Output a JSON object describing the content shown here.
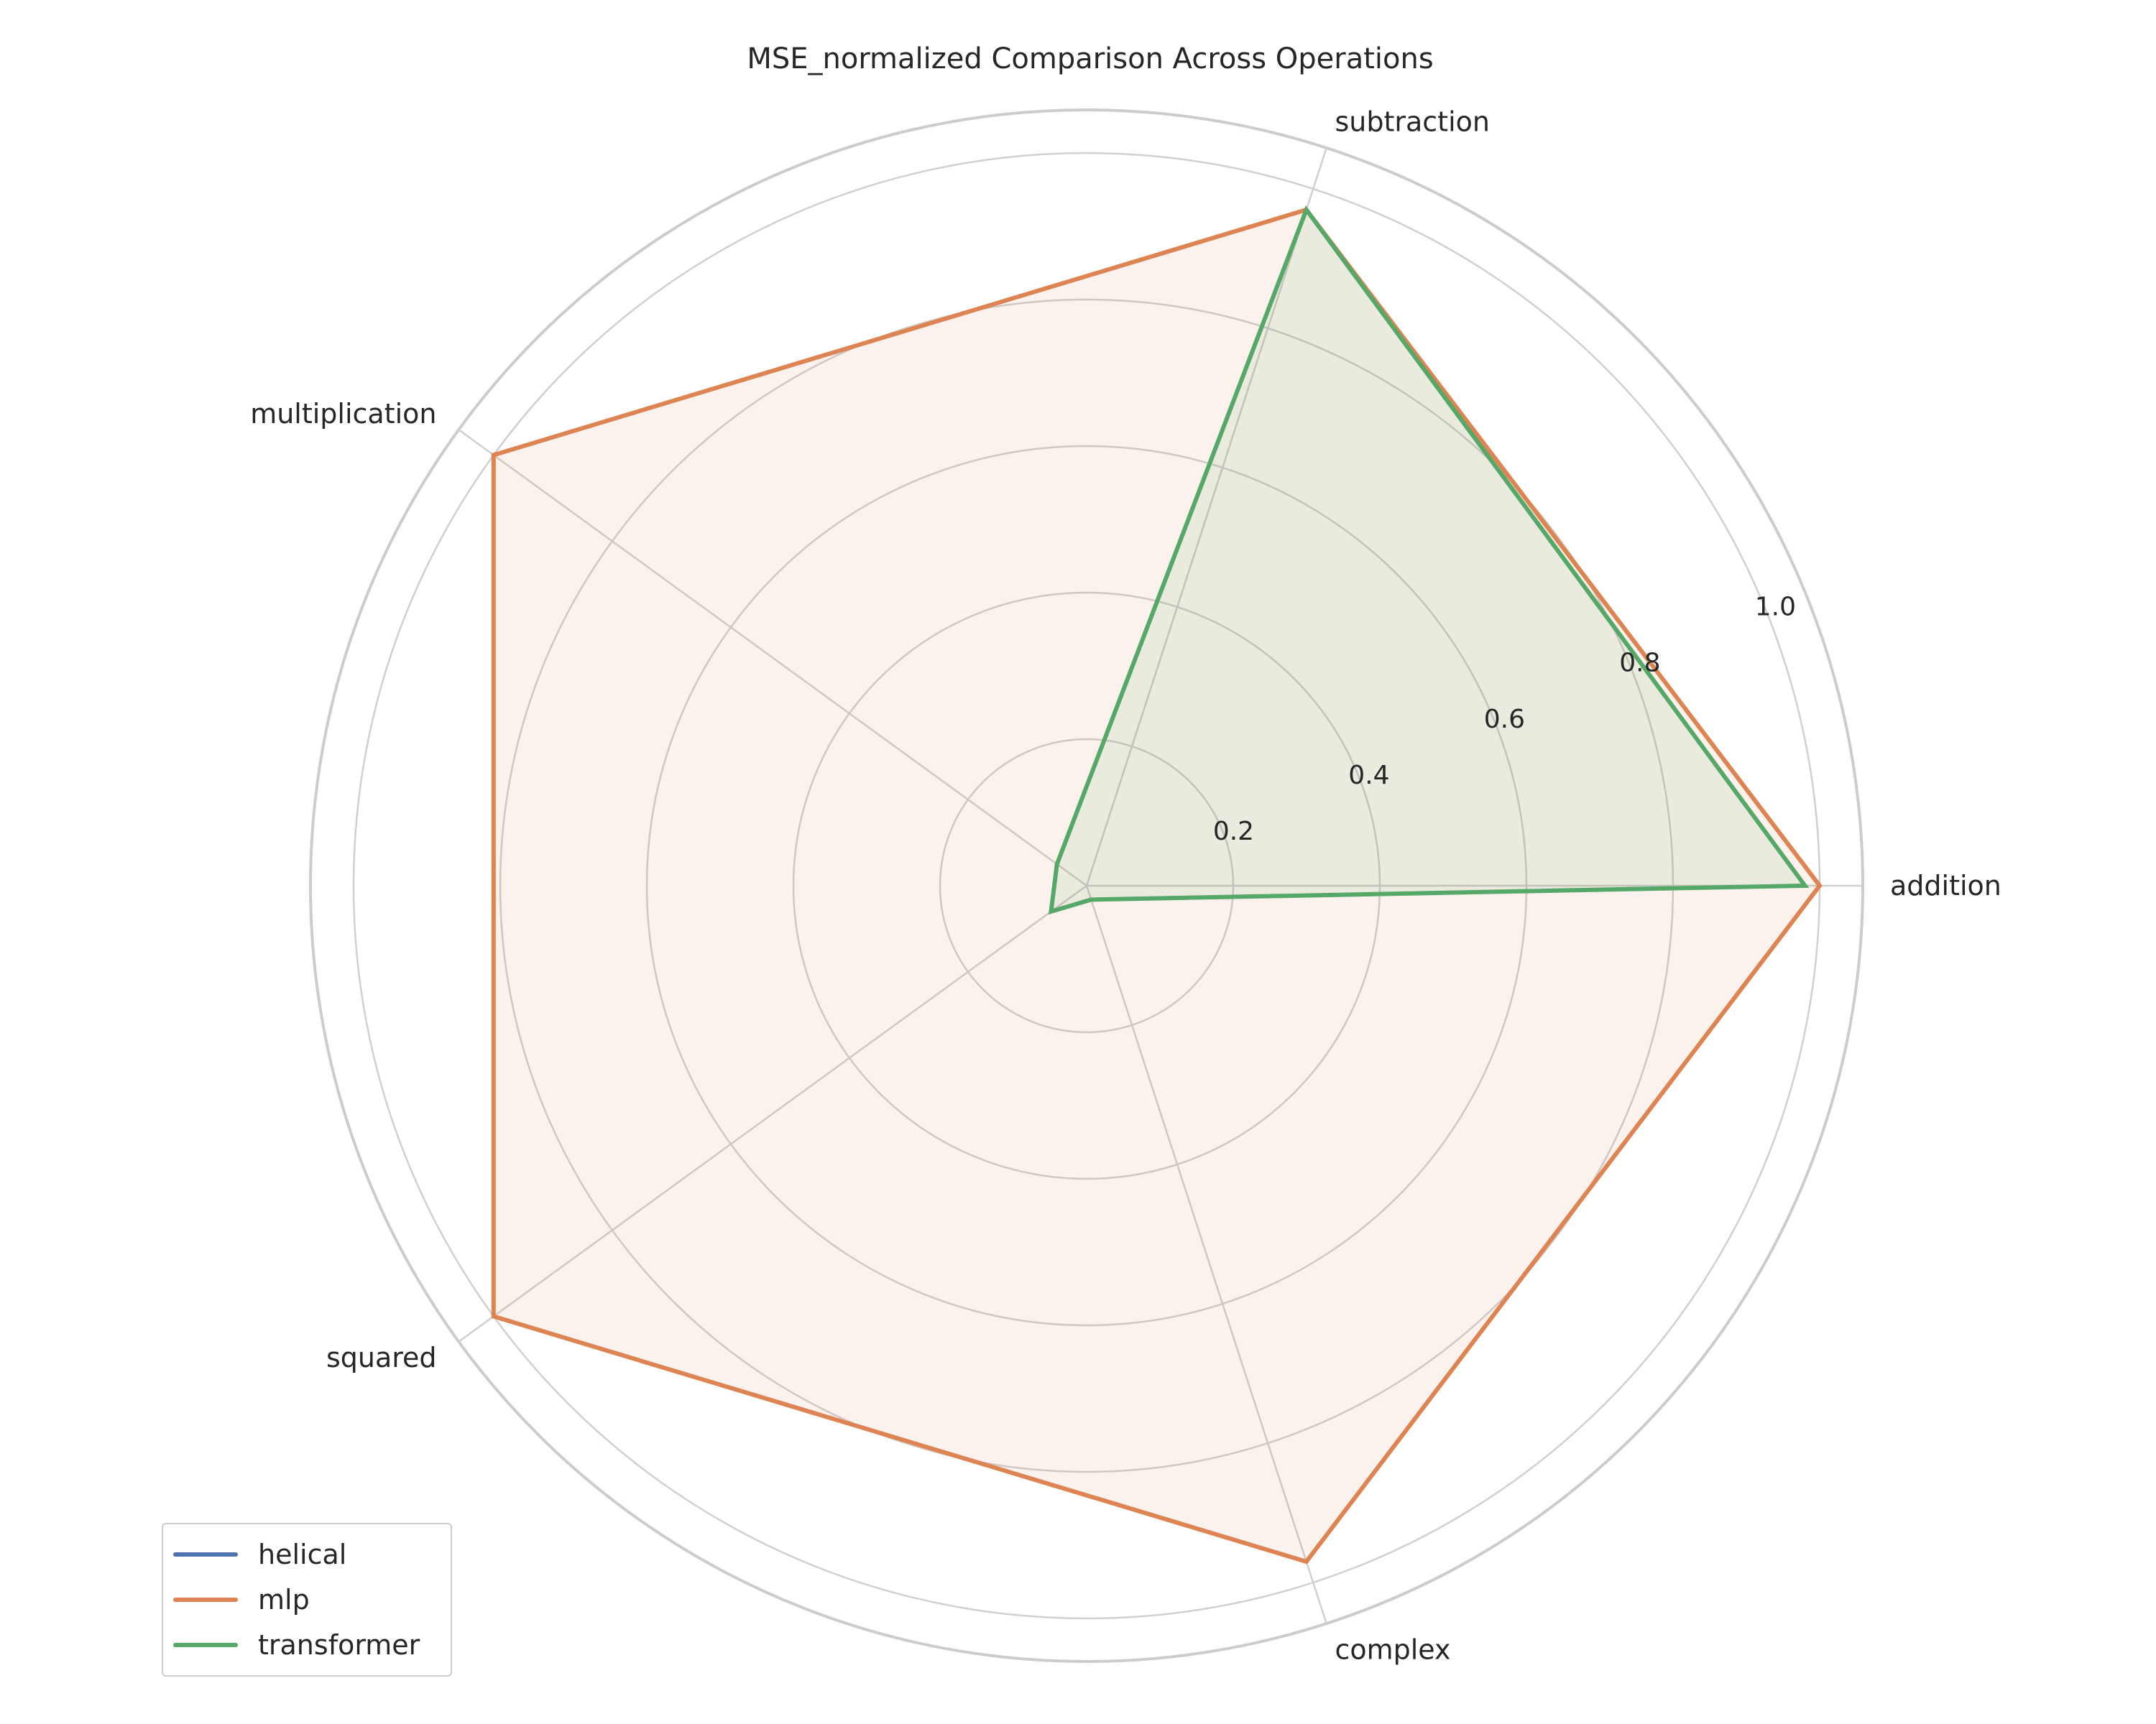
{
  "chart_data": {
    "type": "radar",
    "title": "MSE_normalized Comparison Across Operations",
    "categories": [
      "addition",
      "subtraction",
      "multiplication",
      "squared",
      "complex"
    ],
    "rlim": [
      0,
      1.0
    ],
    "rticks": [
      "0.2",
      "0.4",
      "0.6",
      "0.8",
      "1.0"
    ],
    "rtick_values": [
      0.2,
      0.4,
      0.6,
      0.8,
      1.0
    ],
    "grid": true,
    "legend_position": "lower-left",
    "series": [
      {
        "name": "helical",
        "color": "#4c72b0",
        "values": [
          0.0,
          0.0,
          0.0,
          0.0,
          0.0
        ]
      },
      {
        "name": "mlp",
        "color": "#dd8452",
        "values": [
          1.0,
          0.97,
          1.0,
          1.0,
          0.97
        ]
      },
      {
        "name": "transformer",
        "color": "#55a868",
        "values": [
          0.98,
          0.97,
          0.05,
          0.06,
          0.02
        ]
      }
    ]
  },
  "legend": {
    "items": [
      "helical",
      "mlp",
      "transformer"
    ]
  }
}
